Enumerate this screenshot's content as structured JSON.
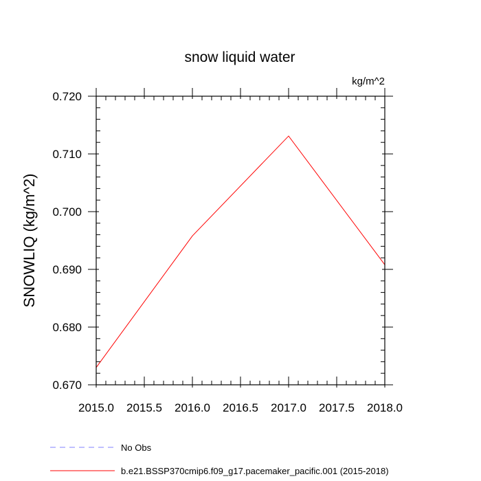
{
  "chart_data": {
    "type": "line",
    "title": "snow liquid water",
    "units_label": "kg/m^2",
    "ylabel": "SNOWLIQ  (kg/m^2)",
    "xlabel": "",
    "xlim": [
      2015.0,
      2018.0
    ],
    "ylim": [
      0.67,
      0.72
    ],
    "x_ticks": [
      2015.0,
      2015.5,
      2016.0,
      2016.5,
      2017.0,
      2017.5,
      2018.0
    ],
    "x_tick_labels": [
      "2015.0",
      "2015.5",
      "2016.0",
      "2016.5",
      "2017.0",
      "2017.5",
      "2018.0"
    ],
    "y_ticks": [
      0.67,
      0.68,
      0.69,
      0.7,
      0.71,
      0.72
    ],
    "y_tick_labels": [
      "0.670",
      "0.680",
      "0.690",
      "0.700",
      "0.710",
      "0.720"
    ],
    "grid": false,
    "legend_position": "bottom",
    "series": [
      {
        "name": "b.e21.BSSP370cmip6.f09_g17.pacemaker_pacific.001 (2015-2018)",
        "color": "#ff0000",
        "style": "solid",
        "x": [
          2015.0,
          2016.0,
          2017.0,
          2018.0
        ],
        "y": [
          0.673,
          0.6958,
          0.7131,
          0.6908
        ]
      },
      {
        "name": "No Obs",
        "color": "#8080ff",
        "style": "dashed",
        "x": [],
        "y": []
      }
    ]
  }
}
